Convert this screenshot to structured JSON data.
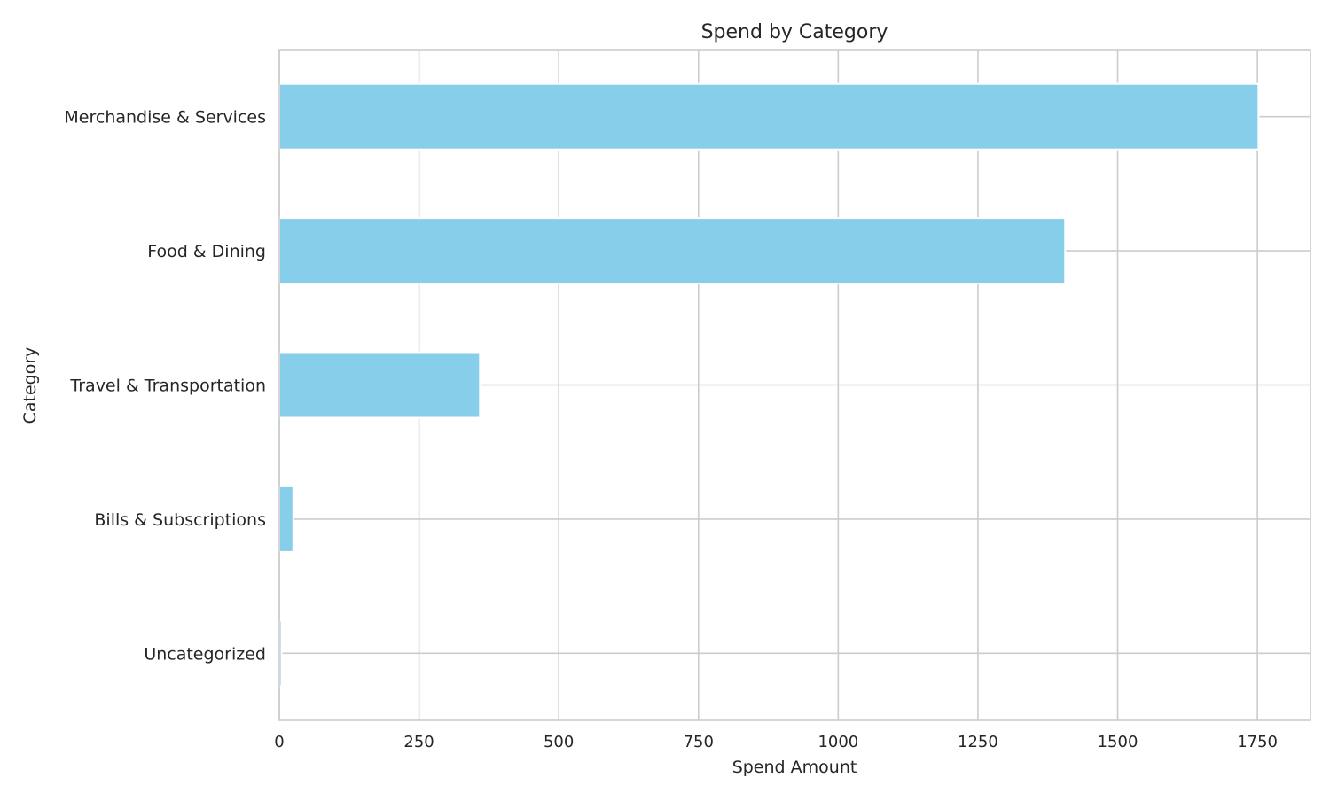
{
  "chart_data": {
    "type": "bar",
    "orientation": "horizontal",
    "title": "Spend by Category",
    "xlabel": "Spend Amount",
    "ylabel": "Category",
    "categories": [
      "Merchandise & Services",
      "Food & Dining",
      "Travel & Transportation",
      "Bills & Subscriptions",
      "Uncategorized"
    ],
    "values": [
      1752,
      1406,
      359,
      25,
      4
    ],
    "xlim": [
      0,
      1845
    ],
    "xticks": [
      0,
      250,
      500,
      750,
      1000,
      1250,
      1500,
      1750
    ],
    "grid": true,
    "bar_color": "#87CEEB",
    "grid_color": "#CCCCCC",
    "text_color": "#262626"
  }
}
